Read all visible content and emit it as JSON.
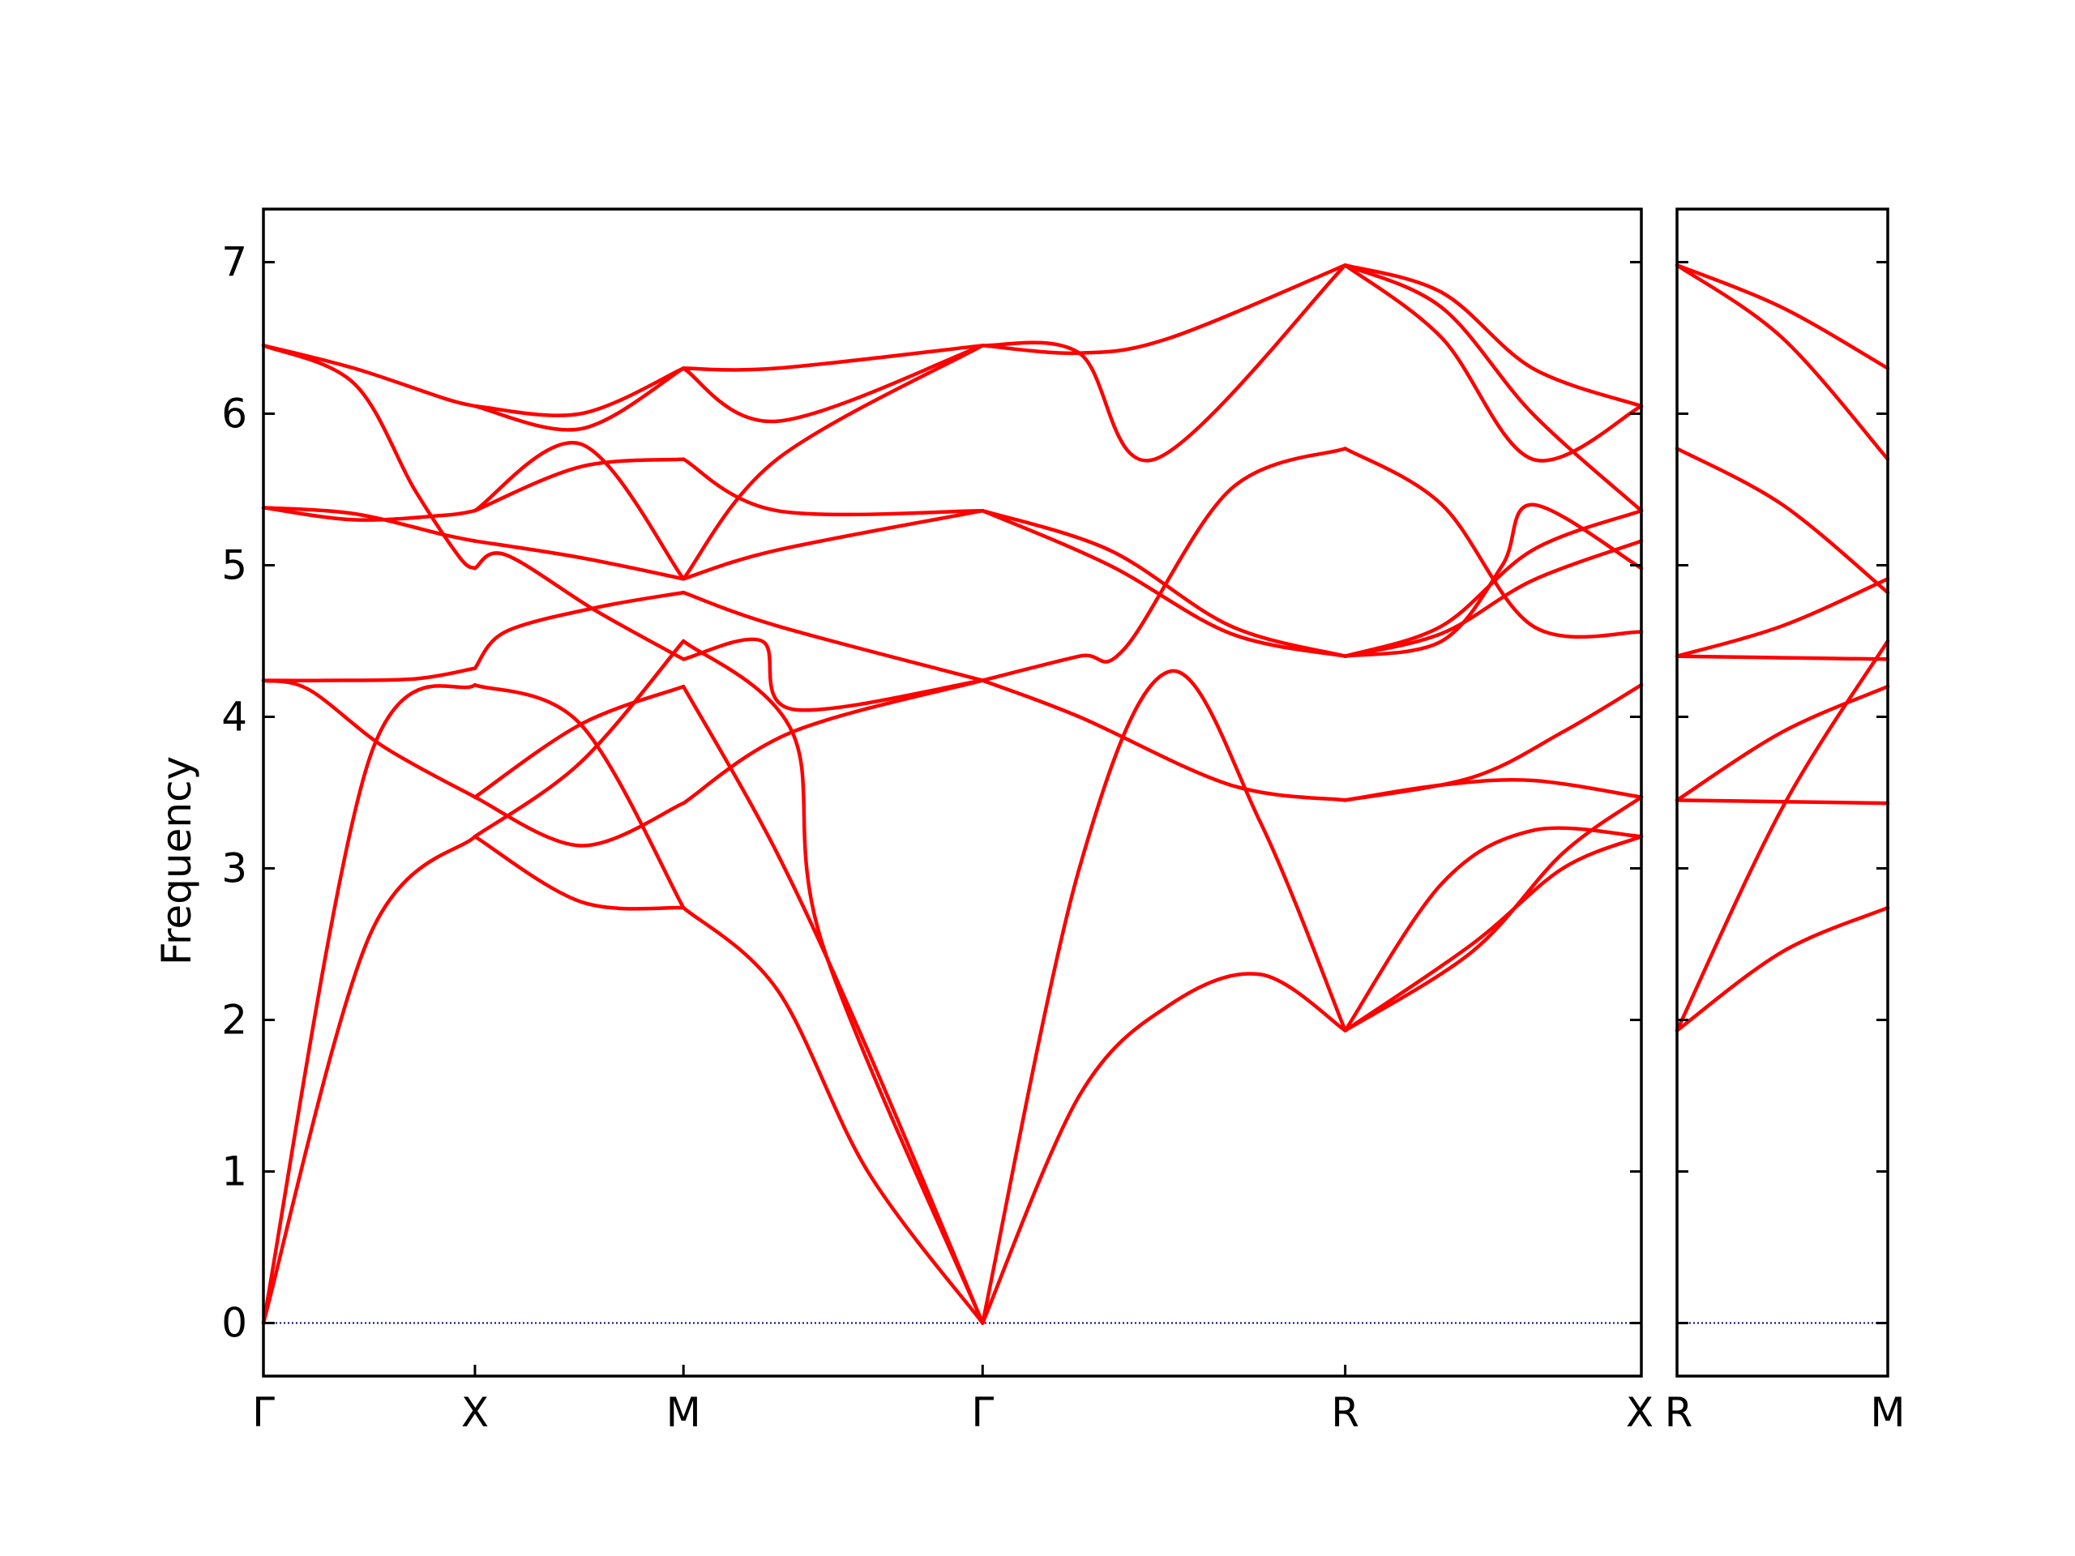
{
  "chart_data": {
    "type": "line",
    "ylabel": "Frequency",
    "ylim": [
      -0.35,
      7.35
    ],
    "yticks": [
      "0",
      "1",
      "2",
      "3",
      "4",
      "5",
      "6",
      "7"
    ],
    "colors": {
      "bands": "#ff0000",
      "zero_line": "#00008b",
      "axes": "#000000"
    },
    "grid": false,
    "panels": [
      {
        "xlim": [
          0,
          4.56
        ],
        "path_labels": [
          {
            "label": "Γ",
            "x": 0
          },
          {
            "label": "X",
            "x": 0.7
          },
          {
            "label": "M",
            "x": 1.39
          },
          {
            "label": "Γ",
            "x": 2.38
          },
          {
            "label": "R",
            "x": 3.58
          },
          {
            "label": "X",
            "x": 4.56
          }
        ],
        "bands": [
          {
            "x": [
              0,
              0.35,
              0.7
            ],
            "y": [
              0,
              2.55,
              3.21
            ]
          },
          {
            "x": [
              0,
              0.35,
              0.7
            ],
            "y": [
              0,
              3.72,
              4.21
            ]
          },
          {
            "x": [
              0,
              0.2,
              0.5,
              0.7
            ],
            "y": [
              4.24,
              4.24,
              4.25,
              4.32
            ]
          },
          {
            "x": [
              0,
              0.15,
              0.4,
              0.7
            ],
            "y": [
              4.24,
              4.18,
              3.8,
              3.47
            ]
          },
          {
            "x": [
              0,
              0.3,
              0.6,
              0.7
            ],
            "y": [
              5.38,
              5.34,
              5.2,
              5.16
            ]
          },
          {
            "x": [
              0,
              0.3,
              0.6,
              0.7
            ],
            "y": [
              5.38,
              5.3,
              5.33,
              5.36
            ]
          },
          {
            "x": [
              0,
              0.3,
              0.5,
              0.65,
              0.7
            ],
            "y": [
              6.45,
              6.2,
              5.5,
              5.05,
              4.98
            ]
          },
          {
            "x": [
              0,
              0.3,
              0.6,
              0.7
            ],
            "y": [
              6.45,
              6.3,
              6.1,
              6.05
            ]
          },
          {
            "x": [
              0.7,
              1.05,
              1.39
            ],
            "y": [
              3.21,
              2.78,
              2.74
            ]
          },
          {
            "x": [
              0.7,
              1.05,
              1.39
            ],
            "y": [
              3.21,
              3.7,
              4.5
            ]
          },
          {
            "x": [
              0.7,
              1.05,
              1.39
            ],
            "y": [
              4.21,
              3.95,
              2.74
            ]
          },
          {
            "x": [
              0.7,
              1.05,
              1.39
            ],
            "y": [
              3.47,
              3.95,
              4.2
            ]
          },
          {
            "x": [
              0.7,
              1.05,
              1.39
            ],
            "y": [
              3.47,
              3.15,
              3.43
            ]
          },
          {
            "x": [
              0.7,
              0.8,
              1.1,
              1.39
            ],
            "y": [
              4.32,
              4.56,
              4.72,
              4.82
            ]
          },
          {
            "x": [
              0.7,
              0.8,
              1.1,
              1.39
            ],
            "y": [
              4.98,
              5.07,
              4.7,
              4.38
            ]
          },
          {
            "x": [
              0.7,
              1.05,
              1.39
            ],
            "y": [
              5.16,
              5.05,
              4.91
            ]
          },
          {
            "x": [
              0.7,
              1.05,
              1.39
            ],
            "y": [
              5.36,
              5.65,
              5.7
            ]
          },
          {
            "x": [
              0.7,
              1.05,
              1.39
            ],
            "y": [
              5.36,
              5.8,
              4.91
            ]
          },
          {
            "x": [
              0.7,
              1.05,
              1.39
            ],
            "y": [
              6.05,
              6.0,
              6.3
            ]
          },
          {
            "x": [
              0.7,
              1.05,
              1.39
            ],
            "y": [
              6.05,
              5.9,
              6.3
            ]
          },
          {
            "x": [
              1.39,
              1.7,
              2.0,
              2.38
            ],
            "y": [
              2.74,
              2.2,
              1.0,
              0
            ]
          },
          {
            "x": [
              1.39,
              1.7,
              2.0,
              2.38
            ],
            "y": [
              4.2,
              3.1,
              1.8,
              0
            ]
          },
          {
            "x": [
              1.39,
              1.75,
              1.85,
              2.38
            ],
            "y": [
              4.5,
              3.9,
              2.5,
              0
            ]
          },
          {
            "x": [
              1.39,
              1.75,
              2.38
            ],
            "y": [
              3.43,
              3.9,
              4.24
            ]
          },
          {
            "x": [
              1.39,
              1.65,
              1.75,
              2.38
            ],
            "y": [
              4.38,
              4.5,
              4.05,
              4.24
            ]
          },
          {
            "x": [
              1.39,
              1.7,
              2.38
            ],
            "y": [
              4.82,
              4.6,
              4.24
            ]
          },
          {
            "x": [
              1.39,
              1.7,
              2.38
            ],
            "y": [
              4.91,
              5.1,
              5.36
            ]
          },
          {
            "x": [
              1.39,
              1.7,
              2.38
            ],
            "y": [
              4.91,
              5.7,
              6.45
            ]
          },
          {
            "x": [
              1.39,
              1.7,
              2.38
            ],
            "y": [
              5.7,
              5.36,
              5.36
            ]
          },
          {
            "x": [
              1.39,
              1.7,
              2.38
            ],
            "y": [
              6.3,
              6.3,
              6.45
            ]
          },
          {
            "x": [
              1.39,
              1.7,
              2.38
            ],
            "y": [
              6.3,
              5.95,
              6.45
            ]
          },
          {
            "x": [
              2.38,
              2.7,
              3.0,
              3.3,
              3.58
            ],
            "y": [
              0,
              3.0,
              4.3,
              3.3,
              1.93
            ]
          },
          {
            "x": [
              2.38,
              2.7,
              3.0,
              3.3,
              3.58
            ],
            "y": [
              0,
              1.5,
              2.1,
              2.3,
              1.93
            ]
          },
          {
            "x": [
              2.38,
              2.7,
              3.2,
              3.58
            ],
            "y": [
              4.24,
              4.0,
              3.55,
              3.45
            ]
          },
          {
            "x": [
              2.38,
              2.7,
              2.85,
              3.2,
              3.58
            ],
            "y": [
              4.24,
              4.4,
              4.45,
              5.5,
              5.77
            ]
          },
          {
            "x": [
              2.38,
              2.8,
              3.2,
              3.58
            ],
            "y": [
              5.36,
              5.1,
              4.6,
              4.4
            ]
          },
          {
            "x": [
              2.38,
              2.8,
              3.2,
              3.58
            ],
            "y": [
              5.36,
              5.0,
              4.55,
              4.4
            ]
          },
          {
            "x": [
              2.38,
              2.7,
              2.95,
              3.58
            ],
            "y": [
              6.45,
              6.4,
              5.7,
              6.98
            ]
          },
          {
            "x": [
              2.38,
              2.7,
              3.0,
              3.58
            ],
            "y": [
              6.45,
              6.4,
              6.5,
              6.98
            ]
          },
          {
            "x": [
              3.58,
              3.9,
              4.2,
              4.56
            ],
            "y": [
              1.93,
              2.9,
              3.25,
              3.21
            ]
          },
          {
            "x": [
              3.58,
              4.0,
              4.3,
              4.56
            ],
            "y": [
              1.93,
              2.5,
              3.0,
              3.21
            ]
          },
          {
            "x": [
              3.58,
              4.0,
              4.3,
              4.56
            ],
            "y": [
              1.93,
              2.45,
              3.1,
              3.47
            ]
          },
          {
            "x": [
              3.58,
              3.9,
              4.2,
              4.56
            ],
            "y": [
              3.45,
              3.55,
              3.58,
              3.47
            ]
          },
          {
            "x": [
              3.58,
              4.0,
              4.3,
              4.56
            ],
            "y": [
              3.45,
              3.6,
              3.9,
              4.21
            ]
          },
          {
            "x": [
              3.58,
              3.9,
              4.2,
              4.56
            ],
            "y": [
              4.4,
              4.6,
              5.1,
              5.36
            ]
          },
          {
            "x": [
              3.58,
              3.9,
              4.2,
              4.56
            ],
            "y": [
              4.4,
              4.55,
              4.9,
              5.16
            ]
          },
          {
            "x": [
              3.58,
              3.9,
              4.2,
              4.56
            ],
            "y": [
              5.77,
              5.4,
              4.6,
              4.56
            ]
          },
          {
            "x": [
              3.58,
              3.9,
              4.1,
              4.2,
              4.56
            ],
            "y": [
              4.4,
              4.5,
              5.0,
              5.4,
              4.98
            ]
          },
          {
            "x": [
              3.58,
              3.9,
              4.2,
              4.56
            ],
            "y": [
              6.98,
              6.8,
              6.3,
              6.05
            ]
          },
          {
            "x": [
              3.58,
              3.9,
              4.2,
              4.56
            ],
            "y": [
              6.98,
              6.5,
              5.7,
              6.05
            ]
          },
          {
            "x": [
              3.58,
              3.9,
              4.2,
              4.56
            ],
            "y": [
              6.98,
              6.7,
              6.0,
              5.36
            ]
          }
        ]
      },
      {
        "xlim": [
          0,
          0.7
        ],
        "path_labels": [
          {
            "label": "R",
            "x": 0
          },
          {
            "label": "M",
            "x": 0.7
          }
        ],
        "bands": [
          {
            "x": [
              0,
              0.35,
              0.7
            ],
            "y": [
              1.93,
              2.45,
              2.74
            ]
          },
          {
            "x": [
              0,
              0.35,
              0.7
            ],
            "y": [
              1.93,
              3.4,
              4.5
            ]
          },
          {
            "x": [
              0,
              0.35,
              0.7
            ],
            "y": [
              3.45,
              3.9,
              4.2
            ]
          },
          {
            "x": [
              0,
              0.35,
              0.7
            ],
            "y": [
              3.45,
              3.44,
              3.43
            ]
          },
          {
            "x": [
              0,
              0.35,
              0.7
            ],
            "y": [
              4.4,
              4.39,
              4.38
            ]
          },
          {
            "x": [
              0,
              0.35,
              0.7
            ],
            "y": [
              4.4,
              4.6,
              4.91
            ]
          },
          {
            "x": [
              0,
              0.35,
              0.7
            ],
            "y": [
              5.77,
              5.4,
              4.82
            ]
          },
          {
            "x": [
              0,
              0.35,
              0.7
            ],
            "y": [
              6.98,
              6.5,
              5.7
            ]
          },
          {
            "x": [
              0,
              0.35,
              0.7
            ],
            "y": [
              6.98,
              6.7,
              6.3
            ]
          }
        ]
      }
    ]
  }
}
